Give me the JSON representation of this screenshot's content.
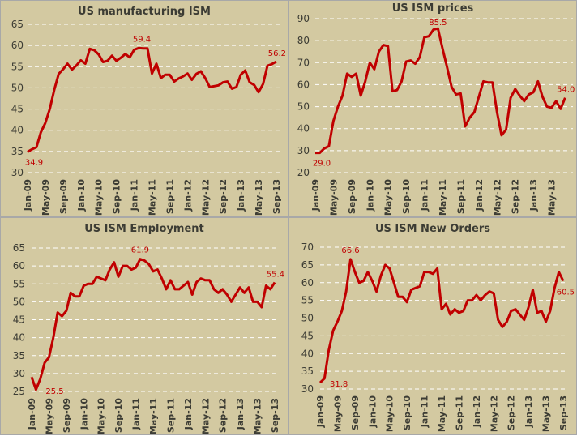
{
  "colors": {
    "background": "#d3c9a1",
    "line": "#c00000",
    "label": "#c00000",
    "grid": "#ffffff",
    "text": "#3c3c34"
  },
  "chart_data": [
    {
      "type": "line",
      "title": "US manufacturing ISM",
      "ylim": [
        30,
        65
      ],
      "yticks": [
        30,
        35,
        40,
        45,
        50,
        55,
        60,
        65
      ],
      "grid": true,
      "start": "Jan-09",
      "xtick_labels": [
        "Jan-09",
        "May-09",
        "Sep-09",
        "Jan-10",
        "May-10",
        "Sep-10",
        "Jan-11",
        "May-11",
        "Sep-11",
        "Jan-12",
        "May-12",
        "Sep-12",
        "Jan-13",
        "May-13",
        "Sep-13"
      ],
      "values": [
        34.9,
        35.5,
        36,
        39.5,
        41.7,
        45,
        49.5,
        53.3,
        54.4,
        55.7,
        54.3,
        55.3,
        56.5,
        55.7,
        59.2,
        58.9,
        57.9,
        56.1,
        56.4,
        57.6,
        56.4,
        57.1,
        58,
        57.2,
        59,
        59.4,
        59.3,
        59.3,
        53.4,
        55.7,
        52.3,
        53.1,
        53.1,
        51.5,
        52.2,
        52.7,
        53.4,
        51.9,
        53.3,
        53.9,
        52.3,
        50.2,
        50.4,
        50.6,
        51.3,
        51.5,
        49.8,
        50.2,
        53.1,
        54.1,
        51.3,
        50.7,
        49,
        50.9,
        55.2,
        55.6,
        56.2
      ],
      "data_labels": [
        {
          "month": "Jan-09",
          "text": "34.9"
        },
        {
          "month": "Feb-11",
          "text": "59.4"
        },
        {
          "month": "Sep-13",
          "text": "56.2"
        }
      ]
    },
    {
      "type": "line",
      "title": "US ISM prices",
      "ylim": [
        20,
        90
      ],
      "yticks": [
        20,
        30,
        40,
        50,
        60,
        70,
        80,
        90
      ],
      "grid": true,
      "start": "Jan-09",
      "xtick_labels": [
        "Jan-09",
        "May-09",
        "Sep-09",
        "Jan-10",
        "May-10",
        "Sep-10",
        "Jan-11",
        "May-11",
        "Sep-11",
        "Jan-12",
        "May-12",
        "Sep-12",
        "Jan-13",
        "May-13"
      ],
      "values": [
        29,
        29,
        31,
        32,
        43.5,
        50,
        55,
        65,
        63.5,
        65,
        55,
        61.5,
        70,
        67,
        75,
        78,
        77.5,
        57,
        57.5,
        61.5,
        70.5,
        71,
        69.5,
        72.5,
        81.5,
        82,
        85,
        85.5,
        76.5,
        68,
        59,
        55.5,
        56,
        41,
        45,
        47.5,
        54.5,
        61.5,
        61,
        61,
        47.5,
        37,
        39.5,
        54,
        58,
        55,
        52.5,
        55.5,
        56.5,
        61.5,
        54.5,
        50,
        49.5,
        52.5,
        49,
        54
      ],
      "data_labels": [
        {
          "month": "Jan-09",
          "text": "29.0"
        },
        {
          "month": "Apr-11",
          "text": "85.5"
        },
        {
          "month": "Aug-13",
          "text": "54.0"
        }
      ]
    },
    {
      "type": "line",
      "title": "US ISM Employment",
      "ylim": [
        25,
        65
      ],
      "yticks": [
        25,
        30,
        35,
        40,
        45,
        50,
        55,
        60,
        65
      ],
      "grid": true,
      "start": "Jan-09",
      "xtick_labels": [
        "Jan-09",
        "May-09",
        "Sep-09",
        "Jan-10",
        "May-10",
        "Sep-10",
        "Jan-11",
        "May-11",
        "Sep-11",
        "Jan-12",
        "May-12",
        "Sep-12",
        "Jan-13",
        "May-13",
        "Sep-13"
      ],
      "values": [
        29,
        25.5,
        28.5,
        33,
        34.5,
        40,
        47,
        46,
        47.5,
        52.5,
        51.5,
        51.5,
        54.5,
        55,
        55,
        57,
        56.5,
        56,
        59,
        61,
        57,
        60,
        60,
        59,
        59.5,
        61.9,
        61.5,
        60.5,
        58.5,
        59,
        56.5,
        53.5,
        56,
        53.5,
        53.5,
        54.5,
        55.5,
        52,
        55.5,
        56.5,
        56,
        56,
        53.5,
        52.5,
        53.5,
        52,
        50,
        52,
        54,
        52.5,
        54,
        50,
        50,
        48.5,
        54.5,
        53.5,
        55.4
      ],
      "data_labels": [
        {
          "month": "Feb-09",
          "text": "25.5"
        },
        {
          "month": "Feb-11",
          "text": "61.9"
        },
        {
          "month": "Sep-13",
          "text": "55.4"
        }
      ]
    },
    {
      "type": "line",
      "title": "US ISM New Orders",
      "ylim": [
        30,
        70
      ],
      "yticks": [
        30,
        35,
        40,
        45,
        50,
        55,
        60,
        65,
        70
      ],
      "grid": true,
      "start": "Jan-09",
      "xtick_labels": [
        "Jan-09",
        "May-09",
        "Sep-09",
        "Jan-10",
        "May-10",
        "Sep-10",
        "Jan-11",
        "May-11",
        "Sep-11",
        "Jan-12",
        "May-12",
        "Sep-12",
        "Jan-13",
        "May-13",
        "Sep-13"
      ],
      "values": [
        31.8,
        33,
        41,
        46.5,
        49,
        52,
        57.5,
        66.6,
        63,
        60,
        60.5,
        63,
        60.5,
        57.5,
        62,
        65,
        64,
        60,
        56,
        56,
        54.5,
        58,
        58.5,
        59,
        63,
        63,
        62.5,
        64,
        52.5,
        54,
        51,
        52.5,
        51.5,
        52,
        55,
        55,
        56.5,
        55,
        56.5,
        57.5,
        57,
        49.5,
        47.5,
        49,
        52,
        52.5,
        51,
        49.5,
        53,
        58,
        51.5,
        52,
        49,
        52,
        58.5,
        63,
        60.5
      ],
      "data_labels": [
        {
          "month": "Jan-09",
          "text": "31.8"
        },
        {
          "month": "Aug-09",
          "text": "66.6"
        },
        {
          "month": "Sep-13",
          "text": "60.5"
        }
      ]
    }
  ]
}
